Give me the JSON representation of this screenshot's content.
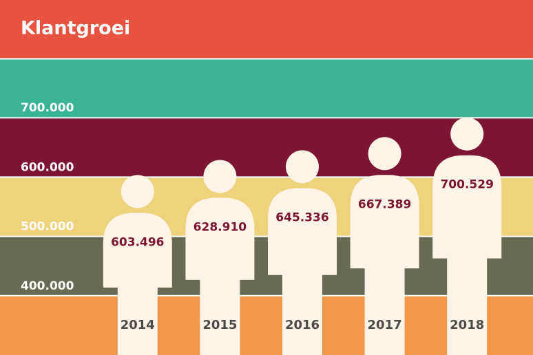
{
  "chart_data": {
    "type": "pictograph",
    "title": "Klantgroei",
    "categories": [
      "2014",
      "2015",
      "2016",
      "2017",
      "2018"
    ],
    "values": [
      603496,
      628910,
      645336,
      667389,
      700529
    ],
    "value_labels": [
      "603.496",
      "628.910",
      "645.336",
      "667.389",
      "700.529"
    ],
    "color": "#fdf4e7",
    "ylim": [
      300000,
      800000
    ],
    "yticks": [
      {
        "value": 400000,
        "label": "400.000"
      },
      {
        "value": 500000,
        "label": "500.000"
      },
      {
        "value": 600000,
        "label": "600.000"
      },
      {
        "value": 700000,
        "label": "700.000"
      }
    ],
    "grid": true
  }
}
